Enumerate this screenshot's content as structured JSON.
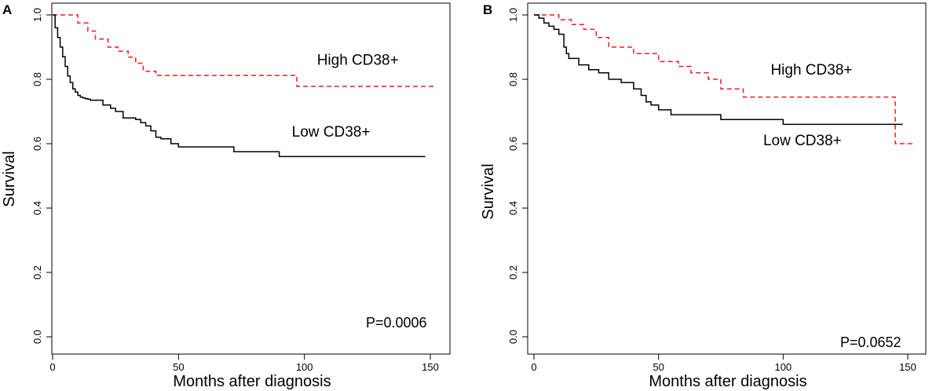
{
  "chart_data": [
    {
      "type": "line",
      "panel_label": "A",
      "xlabel": "Months after diagnosis",
      "ylabel": "Survival",
      "xlim": [
        0,
        150
      ],
      "ylim": [
        0.0,
        1.0
      ],
      "xticks": [
        0,
        50,
        100,
        150
      ],
      "yticks": [
        0.0,
        0.2,
        0.4,
        0.6,
        0.8,
        1.0
      ],
      "xtick_labels": [
        "0",
        "50",
        "100",
        "150"
      ],
      "ytick_labels": [
        "0.0",
        "0.2",
        "0.4",
        "0.6",
        "0.8",
        "1.0"
      ],
      "pvalue_text": "P=0.0006",
      "series": [
        {
          "name": "High CD38+",
          "color": "#ee1c24",
          "style": "dashed",
          "label_at": [
            105,
            0.845
          ],
          "x": [
            0,
            10,
            14,
            17,
            22,
            26,
            30,
            33,
            36,
            41,
            97,
            152
          ],
          "y": [
            1.0,
            0.975,
            0.95,
            0.925,
            0.9,
            0.887,
            0.869,
            0.85,
            0.825,
            0.812,
            0.778,
            0.778
          ]
        },
        {
          "name": "Low CD38+",
          "color": "#000000",
          "style": "solid",
          "label_at": [
            95,
            0.622
          ],
          "x": [
            0,
            1,
            2,
            3,
            4,
            5,
            6,
            7,
            8,
            9,
            10,
            11,
            12,
            13,
            14,
            15,
            20,
            23,
            25,
            28,
            33,
            35,
            37,
            39,
            41,
            43,
            47,
            50,
            72,
            90,
            148
          ],
          "y": [
            1.0,
            0.96,
            0.93,
            0.9,
            0.87,
            0.84,
            0.81,
            0.79,
            0.77,
            0.76,
            0.75,
            0.745,
            0.742,
            0.74,
            0.738,
            0.735,
            0.72,
            0.71,
            0.7,
            0.68,
            0.675,
            0.665,
            0.655,
            0.64,
            0.62,
            0.615,
            0.6,
            0.59,
            0.575,
            0.56,
            0.56
          ]
        }
      ]
    },
    {
      "type": "line",
      "panel_label": "B",
      "xlabel": "Months after diagnosis",
      "ylabel": "Survival",
      "xlim": [
        0,
        150
      ],
      "ylim": [
        0.0,
        1.0
      ],
      "xticks": [
        0,
        50,
        100,
        150
      ],
      "yticks": [
        0.0,
        0.2,
        0.4,
        0.6,
        0.8,
        1.0
      ],
      "xtick_labels": [
        "0",
        "50",
        "100",
        "150"
      ],
      "ytick_labels": [
        "0.0",
        "0.2",
        "0.4",
        "0.6",
        "0.8",
        "1.0"
      ],
      "pvalue_text": "P=0.0652",
      "series": [
        {
          "name": "High CD38+",
          "color": "#ee1c24",
          "style": "dashed",
          "label_at": [
            95,
            0.815
          ],
          "x": [
            0,
            10,
            15,
            20,
            25,
            30,
            40,
            50,
            58,
            63,
            70,
            75,
            84,
            143,
            145,
            152
          ],
          "y": [
            1.0,
            0.985,
            0.97,
            0.955,
            0.93,
            0.9,
            0.88,
            0.855,
            0.84,
            0.82,
            0.8,
            0.77,
            0.745,
            0.745,
            0.6,
            0.6
          ]
        },
        {
          "name": "Low CD38+",
          "color": "#000000",
          "style": "solid",
          "label_at": [
            92,
            0.595
          ],
          "x": [
            0,
            2,
            4,
            6,
            8,
            10,
            12,
            13,
            14,
            18,
            22,
            26,
            30,
            35,
            40,
            43,
            45,
            47,
            50,
            55,
            75,
            100,
            148
          ],
          "y": [
            1.0,
            0.99,
            0.975,
            0.965,
            0.955,
            0.94,
            0.9,
            0.88,
            0.865,
            0.845,
            0.83,
            0.82,
            0.8,
            0.79,
            0.77,
            0.75,
            0.73,
            0.72,
            0.705,
            0.69,
            0.675,
            0.66,
            0.66
          ]
        }
      ]
    }
  ]
}
